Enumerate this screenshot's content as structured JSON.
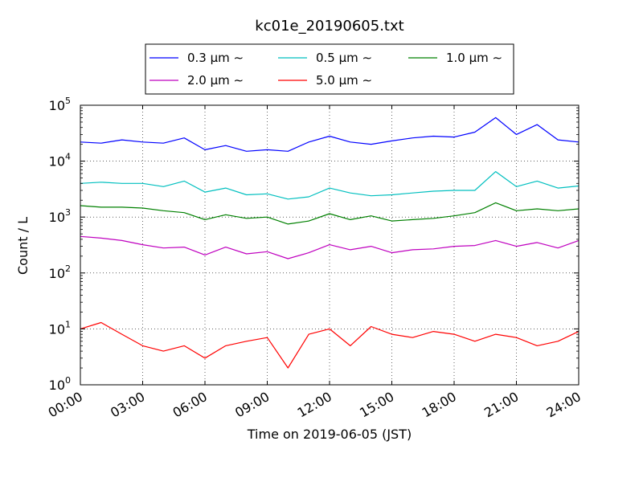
{
  "chart_data": {
    "type": "line",
    "title": "kc01e_20190605.txt",
    "xlabel": "Time on 2019-06-05 (JST)",
    "ylabel": "Count / L",
    "yscale": "log",
    "ylim": [
      1,
      100000
    ],
    "xlim": [
      0,
      24
    ],
    "grid": true,
    "legend_position": "top-center",
    "x_tick_labels": [
      "00:00",
      "03:00",
      "06:00",
      "09:00",
      "12:00",
      "15:00",
      "18:00",
      "21:00",
      "24:00"
    ],
    "y_tick_labels": [
      {
        "base": "10",
        "exp": "0"
      },
      {
        "base": "10",
        "exp": "1"
      },
      {
        "base": "10",
        "exp": "2"
      },
      {
        "base": "10",
        "exp": "3"
      },
      {
        "base": "10",
        "exp": "4"
      },
      {
        "base": "10",
        "exp": "5"
      }
    ],
    "x": [
      0,
      1,
      2,
      3,
      4,
      5,
      6,
      7,
      8,
      9,
      10,
      11,
      12,
      13,
      14,
      15,
      16,
      17,
      18,
      19,
      20,
      21,
      22,
      23,
      24
    ],
    "series": [
      {
        "name": "0.3 μm ∼",
        "color": "#0000ff",
        "values": [
          22000,
          21000,
          24000,
          22000,
          21000,
          26000,
          16000,
          19000,
          15000,
          16000,
          15000,
          22000,
          28000,
          22000,
          20000,
          23000,
          26000,
          28000,
          27000,
          33000,
          60000,
          30000,
          45000,
          24000,
          22000
        ]
      },
      {
        "name": "0.5 μm ∼",
        "color": "#00bfbf",
        "values": [
          4000,
          4200,
          4000,
          4000,
          3500,
          4400,
          2800,
          3300,
          2500,
          2600,
          2100,
          2300,
          3300,
          2700,
          2400,
          2500,
          2700,
          2900,
          3000,
          3000,
          6500,
          3500,
          4400,
          3300,
          3600
        ]
      },
      {
        "name": "1.0 μm ∼",
        "color": "#008000",
        "values": [
          1600,
          1500,
          1500,
          1450,
          1300,
          1200,
          900,
          1100,
          950,
          1000,
          750,
          850,
          1150,
          900,
          1050,
          850,
          900,
          950,
          1050,
          1200,
          1800,
          1300,
          1400,
          1300,
          1400
        ]
      },
      {
        "name": "2.0 μm ∼",
        "color": "#bf00bf",
        "values": [
          450,
          420,
          380,
          320,
          280,
          290,
          210,
          290,
          220,
          240,
          180,
          230,
          320,
          260,
          300,
          230,
          260,
          270,
          300,
          310,
          380,
          300,
          350,
          280,
          380
        ]
      },
      {
        "name": "5.0 μm ∼",
        "color": "#ff0000",
        "values": [
          10,
          13,
          8,
          5,
          4,
          5,
          3,
          5,
          6,
          7,
          2,
          8,
          10,
          5,
          11,
          8,
          7,
          9,
          8,
          6,
          8,
          7,
          5,
          6,
          9
        ]
      }
    ]
  }
}
